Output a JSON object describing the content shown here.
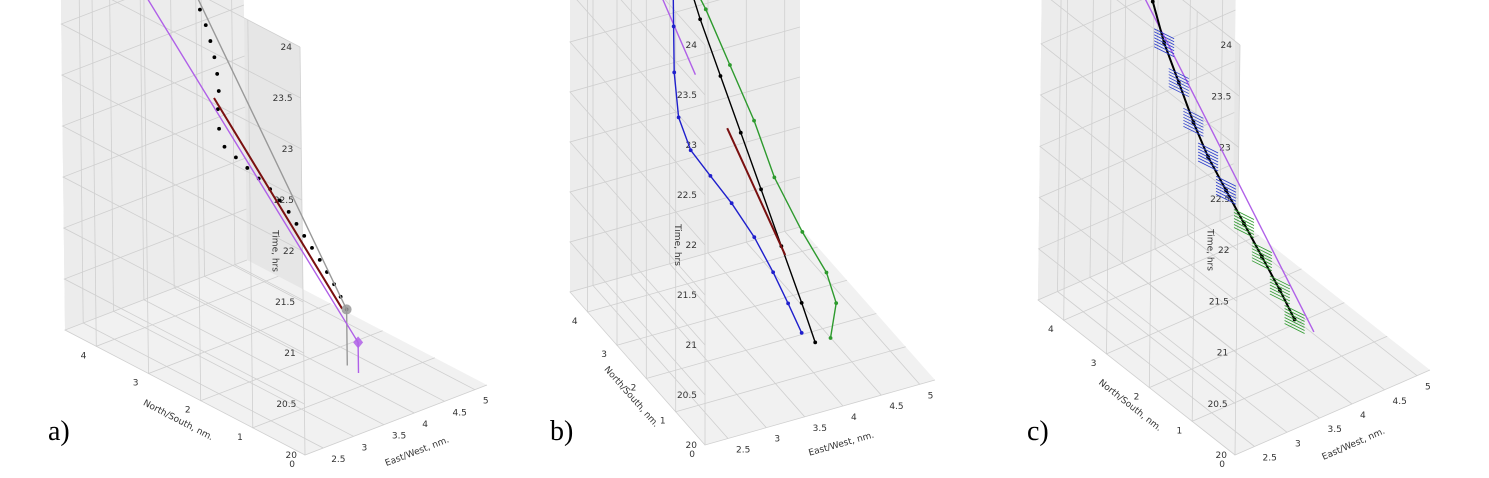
{
  "figure": {
    "panels": [
      "a)",
      "b)",
      "c)"
    ]
  },
  "axes": {
    "x_label": "East/West, nm.",
    "y_label": "North/South, nm.",
    "z_label": "Time, hrs",
    "x_ticks": [
      "2.5",
      "3",
      "3.5",
      "4",
      "4.5",
      "5"
    ],
    "y_ticks": [
      "0",
      "1",
      "2",
      "3",
      "4"
    ],
    "z_ticks": [
      "20",
      "20.5",
      "21",
      "21.5",
      "22",
      "22.5",
      "23",
      "23.5",
      "24"
    ],
    "x_range": [
      2.2,
      5.2
    ],
    "y_range": [
      0,
      4.6
    ],
    "z_range": [
      20,
      24
    ],
    "pane_color": "#e6e6e6",
    "grid": true
  },
  "chart_data": [
    {
      "type": "line",
      "panel": "a)",
      "series": [
        {
          "role": "observations",
          "color": "#000000",
          "style": "points",
          "points": [
            [
              3.4,
              3.55,
              23.45
            ],
            [
              3.45,
              3.5,
              23.3
            ],
            [
              3.5,
              3.45,
              23.15
            ],
            [
              3.55,
              3.4,
              23.0
            ],
            [
              3.58,
              3.35,
              22.85
            ],
            [
              3.6,
              3.3,
              22.7
            ],
            [
              3.6,
              3.25,
              22.55
            ],
            [
              3.58,
              3.2,
              22.4
            ],
            [
              3.52,
              3.15,
              22.25
            ],
            [
              3.45,
              3.05,
              22.1
            ],
            [
              3.45,
              2.95,
              21.95
            ],
            [
              3.55,
              2.85,
              21.85
            ],
            [
              3.65,
              2.75,
              21.75
            ],
            [
              3.75,
              2.65,
              21.65
            ],
            [
              3.85,
              2.55,
              21.55
            ],
            [
              3.92,
              2.45,
              21.45
            ],
            [
              3.98,
              2.35,
              21.35
            ],
            [
              4.02,
              2.25,
              21.25
            ],
            [
              4.06,
              2.15,
              21.15
            ],
            [
              4.1,
              2.05,
              21.05
            ],
            [
              4.14,
              1.95,
              20.95
            ],
            [
              4.17,
              1.85,
              20.85
            ],
            [
              4.2,
              1.75,
              20.75
            ],
            [
              4.22,
              1.65,
              20.65
            ],
            [
              4.23,
              1.55,
              20.55
            ]
          ]
        },
        {
          "role": "estimate",
          "color": "#7a1010",
          "style": "line",
          "points": [
            [
              3.5,
              3.2,
              22.35
            ],
            [
              4.2,
              1.6,
              20.55
            ]
          ]
        },
        {
          "role": "reference-track",
          "color": "#999999",
          "style": "line",
          "points": [
            [
              3.35,
              3.9,
              23.95
            ],
            [
              3.4,
              3.55,
              23.45
            ],
            [
              4.23,
              1.55,
              20.55
            ],
            [
              4.23,
              1.55,
              20.0
            ]
          ]
        },
        {
          "role": "reference-endpoints",
          "color": "#999999",
          "style": "markers",
          "points": [
            [
              3.35,
              3.9,
              23.95
            ],
            [
              3.4,
              3.55,
              23.45
            ],
            [
              4.23,
              1.55,
              20.55
            ]
          ]
        },
        {
          "role": "target-track",
          "color": "#b060e8",
          "style": "line",
          "points": [
            [
              3.0,
              4.2,
              24.0
            ],
            [
              3.0,
              4.2,
              23.45
            ],
            [
              4.2,
              1.3,
              20.3
            ],
            [
              4.2,
              1.3,
              20.0
            ]
          ]
        },
        {
          "role": "target-endpoints",
          "color": "#b060e8",
          "style": "diamonds",
          "points": [
            [
              3.0,
              4.2,
              24.0
            ],
            [
              3.0,
              4.2,
              23.45
            ],
            [
              4.2,
              1.3,
              20.3
            ]
          ]
        }
      ]
    },
    {
      "type": "line",
      "panel": "b)",
      "series": [
        {
          "role": "target-track",
          "color": "#b060e8",
          "style": "line",
          "points": [
            [
              2.8,
              3.8,
              23.6
            ],
            [
              3.3,
              3.2,
              22.4
            ]
          ]
        },
        {
          "role": "observations",
          "color": "#000000",
          "style": "line-points",
          "points": [
            [
              3.2,
              3.9,
              23.75
            ],
            [
              3.3,
              3.6,
              23.35
            ],
            [
              3.4,
              3.3,
              22.9
            ],
            [
              3.55,
              3.0,
              22.4
            ],
            [
              3.7,
              2.7,
              21.9
            ],
            [
              3.85,
              2.4,
              21.4
            ],
            [
              4.0,
              2.1,
              20.9
            ],
            [
              4.15,
              1.8,
              20.4
            ],
            [
              4.25,
              1.6,
              20.05
            ]
          ]
        },
        {
          "role": "blue-envelope",
          "color": "#1f1fcc",
          "style": "line-points",
          "points": [
            [
              3.2,
              3.85,
              23.55
            ],
            [
              3.2,
              3.7,
              23.2
            ],
            [
              3.15,
              3.55,
              22.8
            ],
            [
              3.1,
              3.4,
              22.4
            ],
            [
              3.1,
              3.25,
              22.0
            ],
            [
              3.2,
              3.1,
              21.7
            ],
            [
              3.4,
              2.95,
              21.45
            ],
            [
              3.6,
              2.75,
              21.2
            ],
            [
              3.8,
              2.5,
              20.9
            ],
            [
              3.95,
              2.25,
              20.6
            ],
            [
              4.05,
              2.0,
              20.35
            ],
            [
              4.15,
              1.8,
              20.1
            ]
          ]
        },
        {
          "role": "green-envelope",
          "color": "#2d9a2d",
          "style": "line-points",
          "points": [
            [
              3.3,
              3.8,
              23.4
            ],
            [
              3.55,
              3.5,
              22.9
            ],
            [
              3.75,
              3.2,
              22.4
            ],
            [
              3.95,
              2.9,
              21.9
            ],
            [
              4.1,
              2.6,
              21.4
            ],
            [
              4.35,
              2.3,
              20.9
            ],
            [
              4.55,
              2.0,
              20.55
            ],
            [
              4.6,
              1.8,
              20.3
            ],
            [
              4.45,
              1.6,
              20.05
            ]
          ]
        },
        {
          "role": "estimate",
          "color": "#7a1010",
          "style": "line",
          "points": [
            [
              3.6,
              2.9,
              21.9
            ],
            [
              4.05,
              2.1,
              20.8
            ]
          ]
        }
      ]
    },
    {
      "type": "line",
      "panel": "c)",
      "series": [
        {
          "role": "target-track",
          "color": "#b060e8",
          "style": "line",
          "points": [
            [
              2.8,
              3.8,
              23.6
            ],
            [
              4.4,
              1.5,
              20.1
            ]
          ]
        },
        {
          "role": "estimate",
          "color": "#000000",
          "style": "line-points",
          "points": [
            [
              3.1,
              3.95,
              23.65
            ],
            [
              3.2,
              3.8,
              23.3
            ],
            [
              3.25,
              3.6,
              22.95
            ],
            [
              3.3,
              3.4,
              22.6
            ],
            [
              3.4,
              3.2,
              22.25
            ],
            [
              3.5,
              3.0,
              21.9
            ],
            [
              3.6,
              2.8,
              21.6
            ],
            [
              3.75,
              2.6,
              21.3
            ],
            [
              3.9,
              2.4,
              21.0
            ],
            [
              4.05,
              2.2,
              20.7
            ],
            [
              4.2,
              2.0,
              20.4
            ],
            [
              4.3,
              1.8,
              20.15
            ]
          ]
        },
        {
          "role": "blue-uncertainty",
          "color": "#2a3ccc",
          "style": "hatch",
          "points": [
            [
              3.3,
              3.4,
              22.6
            ],
            [
              3.4,
              3.2,
              22.25
            ],
            [
              3.5,
              3.0,
              21.9
            ],
            [
              3.6,
              2.8,
              21.6
            ],
            [
              3.75,
              2.6,
              21.3
            ]
          ]
        },
        {
          "role": "green-uncertainty",
          "color": "#2d9a2d",
          "style": "hatch",
          "points": [
            [
              3.9,
              2.4,
              21.0
            ],
            [
              4.05,
              2.2,
              20.7
            ],
            [
              4.2,
              2.0,
              20.4
            ],
            [
              4.3,
              1.8,
              20.15
            ]
          ]
        }
      ]
    }
  ]
}
